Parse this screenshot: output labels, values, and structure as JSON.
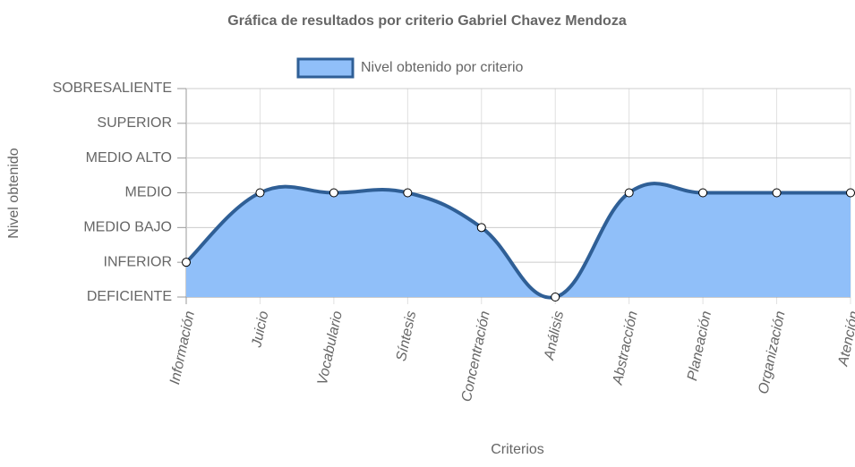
{
  "chart_data": {
    "type": "line",
    "title": "Gráfica de resultados por criterio Gabriel Chavez Mendoza",
    "x_label": "Criterios",
    "y_label": "Nivel obtenido",
    "categories": [
      "Información",
      "Juicio",
      "Vocabulario",
      "Síntesis",
      "Concentración",
      "Análisis",
      "Abstracción",
      "Planeación",
      "Organización",
      "Atención"
    ],
    "series": [
      {
        "name": "Nivel obtenido por criterio",
        "color": "#2f5f96",
        "fill": "#90bff9",
        "values": [
          1,
          3,
          3,
          3,
          2,
          0,
          3,
          3,
          3,
          3
        ]
      }
    ],
    "ylim": [
      0,
      6
    ],
    "yticks": [
      {
        "value": 0,
        "label": "DEFICIENTE"
      },
      {
        "value": 1,
        "label": "INFERIOR"
      },
      {
        "value": 2,
        "label": "MEDIO BAJO"
      },
      {
        "value": 3,
        "label": "MEDIO"
      },
      {
        "value": 4,
        "label": "MEDIO ALTO"
      },
      {
        "value": 5,
        "label": "SUPERIOR"
      },
      {
        "value": 6,
        "label": "SOBRESALIENTE"
      }
    ],
    "grid": true
  }
}
